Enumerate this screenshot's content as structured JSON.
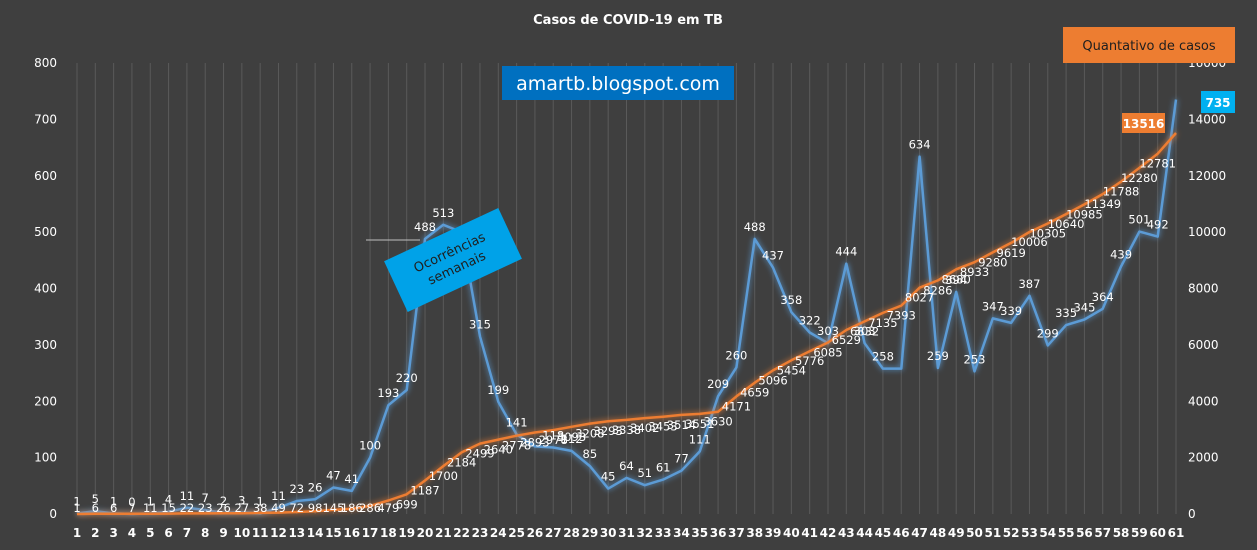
{
  "chart_data": {
    "type": "line",
    "title": "Casos de COVID-19 em TB",
    "x": [
      1,
      2,
      3,
      4,
      5,
      6,
      7,
      8,
      9,
      10,
      11,
      12,
      13,
      14,
      15,
      16,
      17,
      18,
      19,
      20,
      21,
      22,
      23,
      24,
      25,
      26,
      27,
      28,
      29,
      30,
      31,
      32,
      33,
      34,
      35,
      36,
      37,
      38,
      39,
      40,
      41,
      42,
      43,
      44,
      45,
      46,
      47,
      48,
      49,
      50,
      51,
      52,
      53,
      54,
      55,
      56,
      57,
      58,
      59,
      60,
      61
    ],
    "y_left_lim": [
      0,
      800
    ],
    "y_left_ticks": [
      0,
      100,
      200,
      300,
      400,
      500,
      600,
      700,
      800
    ],
    "y_right_lim": [
      0,
      16000
    ],
    "y_right_ticks": [
      0,
      2000,
      4000,
      6000,
      8000,
      10000,
      12000,
      14000,
      16000
    ],
    "grid": "vertical",
    "series": [
      {
        "name": "Ocorrências semanais",
        "axis": "left",
        "color": "#5b9bd5",
        "values": [
          1,
          5,
          1,
          0,
          1,
          4,
          11,
          7,
          2,
          3,
          1,
          11,
          23,
          26,
          47,
          41,
          100,
          193,
          220,
          488,
          513,
          500,
          315,
          199,
          141,
          120,
          118,
          112,
          85,
          45,
          64,
          51,
          61,
          77,
          111,
          209,
          260,
          488,
          437,
          358,
          322,
          303,
          444,
          303,
          258,
          258,
          634,
          259,
          394,
          253,
          347,
          339,
          387,
          299,
          335,
          345,
          364,
          439,
          501,
          492,
          735
        ],
        "labels": [
          "1",
          "5",
          "1",
          "0",
          "1",
          "4",
          "11",
          "7",
          "2",
          "3",
          "1",
          "11",
          "23",
          "26",
          "47",
          "41",
          "100",
          "193",
          "220",
          "488",
          "513",
          "",
          "315",
          "199",
          "141",
          "",
          "118",
          "112",
          "85",
          "45",
          "64",
          "51",
          "61",
          "77",
          "111",
          "209",
          "260",
          "488",
          "437",
          "358",
          "322",
          "303",
          "444",
          "303",
          "258",
          "",
          "634",
          "259",
          "394",
          "253",
          "347",
          "339",
          "387",
          "299",
          "335",
          "345",
          "364",
          "439",
          "501",
          "492",
          "735"
        ]
      },
      {
        "name": "Quantativo de casos",
        "axis": "right",
        "color": "#ed7d31",
        "values": [
          1,
          6,
          6,
          7,
          11,
          15,
          22,
          23,
          26,
          27,
          38,
          49,
          72,
          98,
          145,
          186,
          286,
          479,
          699,
          1187,
          1700,
          2184,
          2499,
          2640,
          2778,
          2893,
          2978,
          3093,
          3208,
          3293,
          3338,
          3402,
          3453,
          3514,
          3551,
          3630,
          4171,
          4659,
          5096,
          5454,
          5776,
          6085,
          6529,
          6832,
          7135,
          7393,
          8027,
          8286,
          8680,
          8933,
          9280,
          9619,
          10006,
          10305,
          10640,
          10985,
          11349,
          11788,
          12280,
          12781,
          13516
        ],
        "labels": [
          "1",
          "6",
          "6",
          "7",
          "11",
          "15",
          "22",
          "23",
          "26",
          "27",
          "38",
          "49",
          "72",
          "98",
          "145",
          "186",
          "286",
          "479",
          "699",
          "1187",
          "1700",
          "2184",
          "2499",
          "2640",
          "2778",
          "2893",
          "2978",
          "3093",
          "3208",
          "3293",
          "3338",
          "3402",
          "3453",
          "3514",
          "3551",
          "3630",
          "4171",
          "4659",
          "5096",
          "5454",
          "5776",
          "6085",
          "6529",
          "6832",
          "7135",
          "7393",
          "8027",
          "8286",
          "8680",
          "8933",
          "9280",
          "9619",
          "10006",
          "10305",
          "10640",
          "10985",
          "11349",
          "11788",
          "12280",
          "12781",
          "13516"
        ]
      }
    ],
    "annotations": {
      "blog": "amartb.blogspot.com",
      "weekly_box": "Ocorrências semanais",
      "total_box": "Quantativo de casos",
      "highlight_total": "13516",
      "highlight_weekly": "735"
    },
    "colors": {
      "background": "#3f3f3f",
      "weekly": "#5b9bd5",
      "total": "#ed7d31",
      "blog_box": "#0070c0",
      "weekly_box": "#00a2e8",
      "total_box": "#ed7d31",
      "highlight_weekly_box": "#00b0f0"
    }
  }
}
